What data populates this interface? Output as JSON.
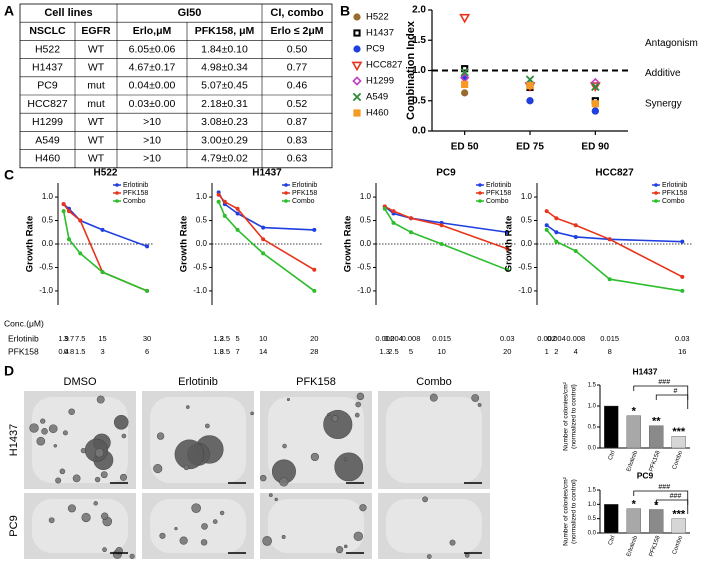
{
  "panels": [
    "A",
    "B",
    "C",
    "D"
  ],
  "table": {
    "group_headers": [
      "Cell lines",
      "GI50",
      "CI, combo"
    ],
    "columns": [
      "NSCLC",
      "EGFR",
      "Erlo,μM",
      "PFK158, μM",
      "Erlo ≤ 2μM"
    ],
    "rows": [
      [
        "H522",
        "WT",
        "6.05±0.06",
        "1.84±0.10",
        "0.50"
      ],
      [
        "H1437",
        "WT",
        "4.67±0.17",
        "4.98±0.34",
        "0.77"
      ],
      [
        "PC9",
        "mut",
        "0.04±0.00",
        "5.07±0.45",
        "0.46"
      ],
      [
        "HCC827",
        "mut",
        "0.03±0.00",
        "2.18±0.31",
        "0.52"
      ],
      [
        "H1299",
        "WT",
        ">10",
        "3.08±0.23",
        "0.87"
      ],
      [
        "A549",
        "WT",
        ">10",
        "3.00±0.29",
        "0.83"
      ],
      [
        "H460",
        "WT",
        ">10",
        "4.79±0.02",
        "0.63"
      ]
    ]
  },
  "chart_data": [
    {
      "type": "scatter",
      "categories": [
        "ED 50",
        "ED 75",
        "ED 90"
      ],
      "ylabel": "Combination Index",
      "ylim": [
        0,
        2
      ],
      "yticks": [
        {
          "value": 0,
          "label": "0.0"
        },
        {
          "value": 0.5,
          "label": "0.5"
        },
        {
          "value": 1,
          "label": "1.0"
        },
        {
          "value": 1.5,
          "label": "1.5"
        },
        {
          "value": 2,
          "label": "2.0"
        }
      ],
      "reference_line": 1,
      "annotations": [
        "Antagonism",
        "Additive",
        "Synergy"
      ],
      "legend": "left",
      "series": [
        {
          "name": "H522",
          "color": "#9a6b2f",
          "marker": "circle",
          "values": [
            0.63,
            0.5,
            0.33
          ]
        },
        {
          "name": "H1437",
          "color": "#000000",
          "marker": "square-open",
          "values": [
            1.03,
            0.72,
            0.5
          ]
        },
        {
          "name": "PC9",
          "color": "#1f3fe0",
          "marker": "circle",
          "values": [
            0.9,
            0.5,
            0.33
          ]
        },
        {
          "name": "HCC827",
          "color": "#e8341c",
          "marker": "triangle-open",
          "values": [
            1.88,
            0.75,
            0.75
          ]
        },
        {
          "name": "H1299",
          "color": "#c23fc2",
          "marker": "diamond-open",
          "values": [
            0.88,
            0.78,
            0.8
          ]
        },
        {
          "name": "A549",
          "color": "#2e8b3a",
          "marker": "x",
          "values": [
            0.97,
            0.85,
            0.73
          ]
        },
        {
          "name": "H460",
          "color": "#f59a23",
          "marker": "square",
          "values": [
            0.77,
            0.75,
            0.45
          ]
        }
      ]
    },
    {
      "type": "line",
      "title": "H522",
      "ylabel": "Growth Rate",
      "x": [
        1.9,
        3.7,
        7.5,
        15,
        30
      ],
      "xlim": [
        0,
        32
      ],
      "xticks": [
        1.9,
        3.7,
        7.5,
        15,
        30
      ],
      "pfk158_ticks": [
        0.4,
        0.8,
        1.5,
        3,
        6
      ],
      "ylim": [
        -1.3,
        1.3
      ],
      "yticks": [
        {
          "value": 1,
          "label": "1.0"
        },
        0.5,
        {
          "value": 0,
          "label": "0.0"
        },
        -0.5,
        {
          "value": -1,
          "label": "-1.0"
        }
      ],
      "reference_line": 0,
      "legend": "upper right",
      "series": [
        {
          "name": "Erlotinib",
          "color": "#1f3fe0",
          "values": [
            0.85,
            0.75,
            0.5,
            0.3,
            -0.05
          ]
        },
        {
          "name": "PFK158",
          "color": "#e8341c",
          "values": [
            0.85,
            0.7,
            0.5,
            -0.6,
            -1.0
          ]
        },
        {
          "name": "Combo",
          "color": "#2bbd2b",
          "values": [
            0.7,
            0.1,
            -0.2,
            -0.6,
            -1.0
          ]
        }
      ]
    },
    {
      "type": "line",
      "title": "H1437",
      "ylabel": "Growth Rate",
      "x": [
        1.3,
        2.5,
        5,
        10,
        20
      ],
      "xlim": [
        0,
        21.5
      ],
      "xticks": [
        1.3,
        2.5,
        5,
        10,
        20
      ],
      "pfk158_ticks": [
        1.8,
        3.5,
        7,
        14,
        28
      ],
      "ylim": [
        -1.3,
        1.3
      ],
      "yticks": [
        {
          "value": 1,
          "label": "1.0"
        },
        0.5,
        {
          "value": 0,
          "label": "0.0"
        },
        -0.5,
        {
          "value": -1,
          "label": "-1.0"
        }
      ],
      "reference_line": 0,
      "legend": "upper right",
      "series": [
        {
          "name": "Erlotinib",
          "color": "#1f3fe0",
          "values": [
            1.1,
            0.85,
            0.65,
            0.35,
            0.3
          ]
        },
        {
          "name": "PFK158",
          "color": "#e8341c",
          "values": [
            1.05,
            0.9,
            0.75,
            0.1,
            -0.55
          ]
        },
        {
          "name": "Combo",
          "color": "#2bbd2b",
          "values": [
            0.9,
            0.6,
            0.3,
            -0.2,
            -1.0
          ]
        }
      ]
    },
    {
      "type": "line",
      "title": "PC9",
      "ylabel": "Growth Rate",
      "x": [
        0.002,
        0.004,
        0.008,
        0.015,
        0.03
      ],
      "xlim": [
        0,
        0.032
      ],
      "xticks": [
        0.002,
        0.004,
        0.008,
        0.015,
        0.03
      ],
      "pfk158_ticks": [
        1.3,
        2.5,
        5,
        10,
        20
      ],
      "ylim": [
        -1.3,
        1.3
      ],
      "yticks": [
        {
          "value": 1,
          "label": "1.0"
        },
        0.5,
        {
          "value": 0,
          "label": "0.0"
        },
        -0.5,
        {
          "value": -1,
          "label": "-1.0"
        }
      ],
      "reference_line": 0,
      "legend": "upper right",
      "series": [
        {
          "name": "Erlotinib",
          "color": "#1f3fe0",
          "values": [
            0.8,
            0.65,
            0.55,
            0.45,
            0.25
          ]
        },
        {
          "name": "PFK158",
          "color": "#e8341c",
          "values": [
            0.8,
            0.7,
            0.55,
            0.4,
            -0.1
          ]
        },
        {
          "name": "Combo",
          "color": "#2bbd2b",
          "values": [
            0.75,
            0.45,
            0.25,
            0.0,
            -0.55
          ]
        }
      ]
    },
    {
      "type": "line",
      "title": "HCC827",
      "ylabel": "Growth Rate",
      "x": [
        0.002,
        0.004,
        0.008,
        0.015,
        0.03
      ],
      "xlim": [
        0,
        0.032
      ],
      "xticks": [
        0.002,
        0.004,
        0.008,
        0.015,
        0.03
      ],
      "pfk158_ticks": [
        1,
        2,
        4,
        8,
        16
      ],
      "ylim": [
        -1.3,
        1.3
      ],
      "yticks": [
        {
          "value": 1,
          "label": "1.0"
        },
        0.5,
        {
          "value": 0,
          "label": "0.0"
        },
        -0.5,
        {
          "value": -1,
          "label": "-1.0"
        }
      ],
      "reference_line": 0,
      "legend": "upper right",
      "series": [
        {
          "name": "Erlotinib",
          "color": "#1f3fe0",
          "values": [
            0.4,
            0.25,
            0.15,
            0.1,
            0.05
          ]
        },
        {
          "name": "PFK158",
          "color": "#e8341c",
          "values": [
            0.7,
            0.55,
            0.4,
            0.1,
            -0.7
          ]
        },
        {
          "name": "Combo",
          "color": "#2bbd2b",
          "values": [
            0.3,
            0.05,
            -0.15,
            -0.75,
            -1.0
          ]
        }
      ]
    },
    {
      "type": "bar",
      "title": "H1437",
      "ylabel": [
        "Number of colonies/cm²",
        "(normalized to control)"
      ],
      "categories": [
        "Ctrl",
        "Erlotinib",
        "PFK158",
        "Combo"
      ],
      "values": [
        1.0,
        0.77,
        0.53,
        0.28
      ],
      "colors": [
        "#000000",
        "#a8a8a8",
        "#8a8a8a",
        "#d6d6d6"
      ],
      "ylim": [
        0,
        1.5
      ],
      "yticks": [
        {
          "value": 0,
          "label": "0.0"
        },
        0.5,
        {
          "value": 1,
          "label": "1.0"
        },
        1.5
      ],
      "significance": [
        null,
        "*",
        "**",
        "***"
      ],
      "brackets": [
        "###",
        "#"
      ]
    },
    {
      "type": "bar",
      "title": "PC9",
      "ylabel": [
        "Number of colonies/cm²",
        "(normalized to control)"
      ],
      "categories": [
        "Ctrl",
        "Erlotinib",
        "PFK158",
        "Combo"
      ],
      "values": [
        1.0,
        0.85,
        0.82,
        0.5
      ],
      "colors": [
        "#000000",
        "#a8a8a8",
        "#8a8a8a",
        "#d6d6d6"
      ],
      "ylim": [
        0,
        1.5
      ],
      "yticks": [
        {
          "value": 0,
          "label": "0.0"
        },
        0.5,
        {
          "value": 1,
          "label": "1.0"
        },
        1.5
      ],
      "significance": [
        null,
        "*",
        "*",
        "***"
      ],
      "brackets": [
        "###",
        "###"
      ]
    }
  ],
  "conc_labels": [
    "Conc.(μM)",
    "Erlotinib",
    "PFK158"
  ],
  "micrographs": {
    "columns": [
      "DMSO",
      "Erlotinib",
      "PFK158",
      "Combo"
    ],
    "rows": [
      "H1437",
      "PC9"
    ]
  }
}
